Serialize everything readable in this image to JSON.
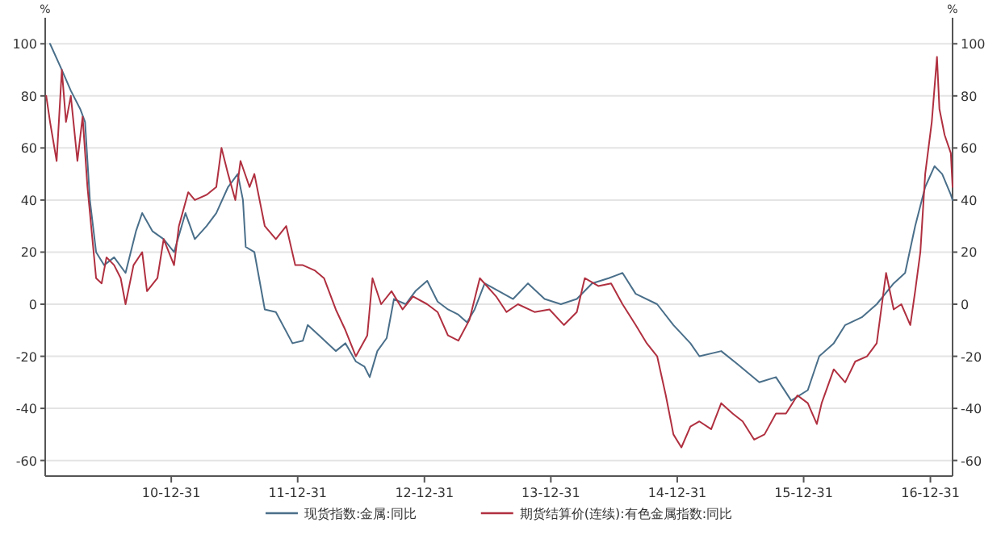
{
  "chart_data": {
    "type": "line",
    "ylabel": "%",
    "y2label": "%",
    "xlim": [
      "2010-01-01",
      "2017-03-05"
    ],
    "xticks": [
      {
        "value": "2010-12-31",
        "label": "10-12-31"
      },
      {
        "value": "2011-12-31",
        "label": "11-12-31"
      },
      {
        "value": "2012-12-31",
        "label": "12-12-31"
      },
      {
        "value": "2013-12-31",
        "label": "13-12-31"
      },
      {
        "value": "2014-12-31",
        "label": "14-12-31"
      },
      {
        "value": "2015-12-31",
        "label": "15-12-31"
      },
      {
        "value": "2016-12-31",
        "label": "16-12-31"
      }
    ],
    "ylim": [
      -66,
      110
    ],
    "yticks": [
      -60,
      -40,
      -20,
      0,
      20,
      40,
      60,
      80,
      100
    ],
    "y2lim": [
      -66,
      110
    ],
    "y2ticks": [
      -60,
      -40,
      -20,
      0,
      20,
      40,
      60,
      80,
      100
    ],
    "grid": "y",
    "legend": "bottom",
    "series": [
      {
        "name": "现货指数:金属:同比",
        "color": "#4a6f8a",
        "x": [
          "2010-01-15",
          "2010-02-18",
          "2010-03-16",
          "2010-04-12",
          "2010-04-26",
          "2010-05-10",
          "2010-05-28",
          "2010-06-20",
          "2010-07-19",
          "2010-08-21",
          "2010-09-20",
          "2010-10-08",
          "2010-11-07",
          "2010-12-09",
          "2011-01-08",
          "2011-02-10",
          "2011-03-09",
          "2011-04-12",
          "2011-05-10",
          "2011-06-13",
          "2011-07-11",
          "2011-07-26",
          "2011-08-03",
          "2011-08-28",
          "2011-09-27",
          "2011-10-29",
          "2011-12-16",
          "2012-01-15",
          "2012-01-29",
          "2012-03-02",
          "2012-04-19",
          "2012-05-17",
          "2012-06-16",
          "2012-07-11",
          "2012-07-26",
          "2012-08-17",
          "2012-09-13",
          "2012-10-04",
          "2012-11-07",
          "2012-12-05",
          "2013-01-08",
          "2013-02-07",
          "2013-03-09",
          "2013-04-08",
          "2013-05-03",
          "2013-05-25",
          "2013-06-23",
          "2013-09-13",
          "2013-10-26",
          "2013-12-13",
          "2014-01-29",
          "2014-03-16",
          "2014-04-29",
          "2014-06-16",
          "2014-07-26",
          "2014-09-02",
          "2014-11-03",
          "2014-12-20",
          "2015-02-07",
          "2015-03-05",
          "2015-05-07",
          "2015-06-23",
          "2015-08-25",
          "2015-10-12",
          "2015-11-25",
          "2016-01-12",
          "2016-02-14",
          "2016-03-27",
          "2016-04-29",
          "2016-06-16",
          "2016-07-29",
          "2016-09-16",
          "2016-10-19",
          "2016-11-17",
          "2016-12-16",
          "2017-01-12",
          "2017-02-03",
          "2017-02-28",
          "2017-03-05"
        ],
        "values": [
          100,
          90,
          82,
          75,
          70,
          40,
          20,
          15,
          18,
          12,
          28,
          35,
          28,
          25,
          20,
          35,
          25,
          30,
          35,
          45,
          50,
          40,
          22,
          20,
          -2,
          -3,
          -15,
          -14,
          -8,
          -12,
          -18,
          -15,
          -22,
          -24,
          -28,
          -18,
          -13,
          2,
          0,
          5,
          9,
          1,
          -2,
          -4,
          -7,
          -2,
          8,
          2,
          8,
          2,
          0,
          2,
          8,
          10,
          12,
          4,
          0,
          -8,
          -15,
          -20,
          -18,
          -23,
          -30,
          -28,
          -37,
          -33,
          -20,
          -15,
          -8,
          -5,
          0,
          8,
          12,
          30,
          45,
          53,
          50,
          42,
          40
        ]
      },
      {
        "name": "期货结算价(连续):有色金属指数:同比",
        "color": "#b03040",
        "x": [
          "2010-01-04",
          "2010-01-15",
          "2010-02-03",
          "2010-02-18",
          "2010-03-02",
          "2010-03-16",
          "2010-04-04",
          "2010-04-19",
          "2010-05-03",
          "2010-05-28",
          "2010-06-13",
          "2010-06-27",
          "2010-07-19",
          "2010-08-07",
          "2010-08-21",
          "2010-09-13",
          "2010-10-08",
          "2010-10-22",
          "2010-11-21",
          "2010-12-09",
          "2011-01-08",
          "2011-01-22",
          "2011-02-18",
          "2011-03-09",
          "2011-04-12",
          "2011-05-10",
          "2011-05-25",
          "2011-06-13",
          "2011-07-04",
          "2011-07-19",
          "2011-08-14",
          "2011-08-28",
          "2011-09-27",
          "2011-10-29",
          "2011-11-28",
          "2011-12-24",
          "2012-01-15",
          "2012-02-18",
          "2012-03-16",
          "2012-04-19",
          "2012-05-17",
          "2012-06-16",
          "2012-07-19",
          "2012-08-03",
          "2012-08-28",
          "2012-09-27",
          "2012-10-29",
          "2012-11-28",
          "2013-01-08",
          "2013-02-07",
          "2013-03-09",
          "2013-04-08",
          "2013-05-10",
          "2013-06-09",
          "2013-07-26",
          "2013-08-25",
          "2013-09-27",
          "2013-11-14",
          "2013-12-27",
          "2014-02-07",
          "2014-03-16",
          "2014-04-08",
          "2014-05-17",
          "2014-06-23",
          "2014-07-26",
          "2014-09-02",
          "2014-10-04",
          "2014-11-03",
          "2014-11-28",
          "2014-12-20",
          "2015-01-12",
          "2015-02-07",
          "2015-03-05",
          "2015-04-08",
          "2015-05-07",
          "2015-06-09",
          "2015-07-08",
          "2015-08-10",
          "2015-09-09",
          "2015-10-12",
          "2015-11-10",
          "2015-12-13",
          "2016-01-12",
          "2016-02-07",
          "2016-02-21",
          "2016-03-27",
          "2016-04-29",
          "2016-05-28",
          "2016-07-01",
          "2016-07-29",
          "2016-08-25",
          "2016-09-16",
          "2016-10-08",
          "2016-11-03",
          "2016-11-17",
          "2016-12-02",
          "2016-12-16",
          "2017-01-04",
          "2017-01-19",
          "2017-01-26",
          "2017-02-10",
          "2017-02-28",
          "2017-03-05"
        ],
        "values": [
          80,
          70,
          55,
          90,
          70,
          80,
          55,
          72,
          45,
          10,
          8,
          18,
          15,
          10,
          0,
          15,
          20,
          5,
          10,
          25,
          15,
          30,
          43,
          40,
          42,
          45,
          60,
          50,
          40,
          55,
          45,
          50,
          30,
          25,
          30,
          15,
          15,
          13,
          10,
          -2,
          -10,
          -20,
          -12,
          10,
          0,
          5,
          -2,
          3,
          0,
          -3,
          -12,
          -14,
          -6,
          10,
          3,
          -3,
          0,
          -3,
          -2,
          -8,
          -3,
          10,
          7,
          8,
          0,
          -8,
          -15,
          -20,
          -35,
          -50,
          -55,
          -47,
          -45,
          -48,
          -38,
          -42,
          -45,
          -52,
          -50,
          -42,
          -42,
          -35,
          -38,
          -46,
          -38,
          -25,
          -30,
          -22,
          -20,
          -15,
          12,
          -2,
          0,
          -8,
          5,
          20,
          50,
          70,
          95,
          75,
          65,
          58,
          45
        ]
      }
    ]
  }
}
